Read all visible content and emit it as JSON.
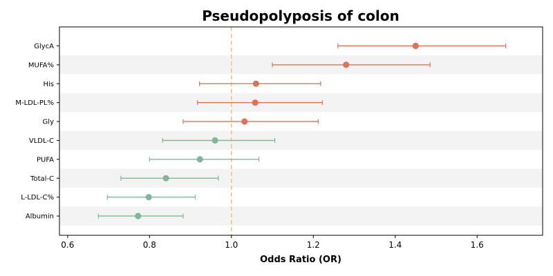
{
  "chart_data": {
    "type": "forest",
    "title": "Pseudopolyposis of colon",
    "xlabel": "Odds Ratio (OR)",
    "ylabel": "",
    "xlim": [
      0.58,
      1.76
    ],
    "xticks": [
      0.6,
      0.8,
      1.0,
      1.2,
      1.4,
      1.6
    ],
    "xtick_labels": [
      "0.6",
      "0.8",
      "1.0",
      "1.2",
      "1.4",
      "1.6"
    ],
    "reference_line": 1.0,
    "colors": {
      "above_one": "#dc7558",
      "below_one": "#80b69a",
      "reference": "#f5c27a",
      "band": "#f3f3f3"
    },
    "rows": [
      {
        "label": "GlycA",
        "or": 1.45,
        "lower": 1.26,
        "upper": 1.67
      },
      {
        "label": "MUFA%",
        "or": 1.28,
        "lower": 1.1,
        "upper": 1.485
      },
      {
        "label": "His",
        "or": 1.06,
        "lower": 0.922,
        "upper": 1.218
      },
      {
        "label": "M-LDL-PL%",
        "or": 1.058,
        "lower": 0.917,
        "upper": 1.222
      },
      {
        "label": "Gly",
        "or": 1.032,
        "lower": 0.882,
        "upper": 1.212
      },
      {
        "label": "VLDL-C",
        "or": 0.96,
        "lower": 0.832,
        "upper": 1.106
      },
      {
        "label": "PUFA",
        "or": 0.923,
        "lower": 0.8,
        "upper": 1.067
      },
      {
        "label": "Total-C",
        "or": 0.84,
        "lower": 0.73,
        "upper": 0.968
      },
      {
        "label": "L-LDL-C%",
        "or": 0.798,
        "lower": 0.697,
        "upper": 0.912
      },
      {
        "label": "Albumin",
        "or": 0.772,
        "lower": 0.675,
        "upper": 0.882
      }
    ]
  }
}
